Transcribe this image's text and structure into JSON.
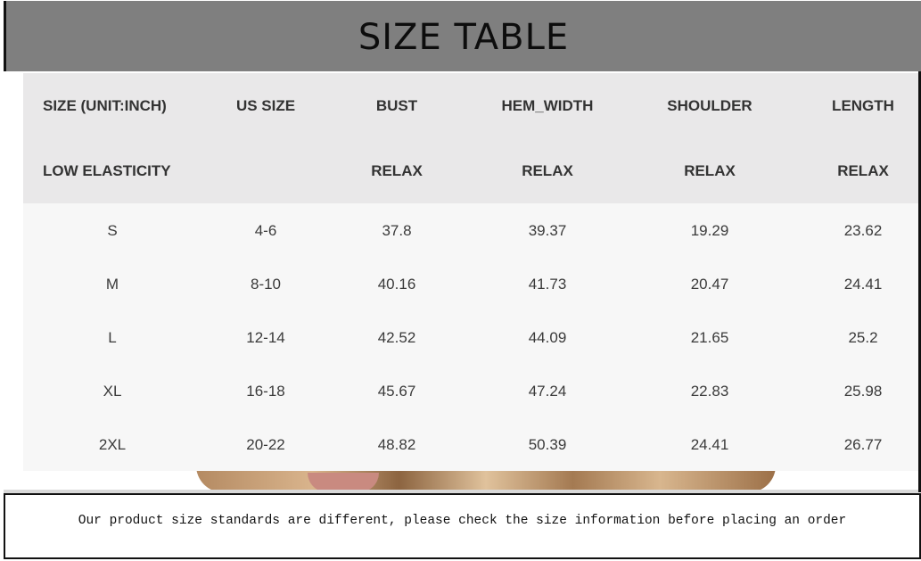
{
  "title": "SIZE TABLE",
  "table": {
    "header_row1": [
      "SIZE  (UNIT:INCH)",
      "US SIZE",
      "BUST",
      "HEM_WIDTH",
      "SHOULDER",
      "LENGTH"
    ],
    "header_row2": [
      "LOW ELASTICITY",
      "",
      "RELAX",
      "RELAX",
      "RELAX",
      "RELAX"
    ],
    "rows": [
      [
        "S",
        "4-6",
        "37.8",
        "39.37",
        "19.29",
        "23.62"
      ],
      [
        "M",
        "8-10",
        "40.16",
        "41.73",
        "20.47",
        "24.41"
      ],
      [
        "L",
        "12-14",
        "42.52",
        "44.09",
        "21.65",
        "25.2"
      ],
      [
        "XL",
        "16-18",
        "45.67",
        "47.24",
        "22.83",
        "25.98"
      ],
      [
        "2XL",
        "20-22",
        "48.82",
        "50.39",
        "24.41",
        "26.77"
      ]
    ]
  },
  "footer_note": "Our product size standards are different, please check the size information before placing an order",
  "colors": {
    "header_bg": "#7f7f7f",
    "table_head_bg": "#e9e8e9",
    "table_body_bg": "#f7f7f7"
  }
}
